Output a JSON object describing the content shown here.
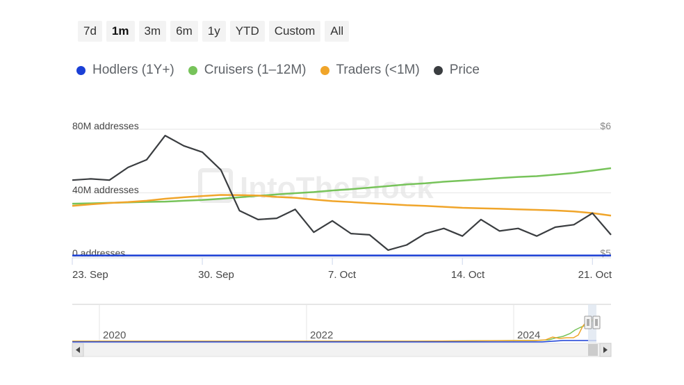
{
  "range_buttons": [
    "7d",
    "1m",
    "3m",
    "6m",
    "1y",
    "YTD",
    "Custom",
    "All"
  ],
  "active_range": "1m",
  "legend": [
    {
      "label": "Hodlers (1Y+)",
      "color": "#1a3fd6"
    },
    {
      "label": "Cruisers (1–12M)",
      "color": "#77c35a"
    },
    {
      "label": "Traders (<1M)",
      "color": "#f0a52a"
    },
    {
      "label": "Price",
      "color": "#3a3d40"
    }
  ],
  "watermark": "IntoTheBlock",
  "chart_data": {
    "type": "line",
    "x": [
      "2024-09-23",
      "2024-09-24",
      "2024-09-25",
      "2024-09-26",
      "2024-09-27",
      "2024-09-28",
      "2024-09-29",
      "2024-09-30",
      "2024-10-01",
      "2024-10-02",
      "2024-10-03",
      "2024-10-04",
      "2024-10-05",
      "2024-10-06",
      "2024-10-07",
      "2024-10-08",
      "2024-10-09",
      "2024-10-10",
      "2024-10-11",
      "2024-10-12",
      "2024-10-13",
      "2024-10-14",
      "2024-10-15",
      "2024-10-16",
      "2024-10-17",
      "2024-10-18",
      "2024-10-19",
      "2024-10-20",
      "2024-10-21",
      "2024-10-22"
    ],
    "x_tick_labels": [
      "23. Sep",
      "30. Sep",
      "7. Oct",
      "14. Oct",
      "21. Oct"
    ],
    "y_left": {
      "tick_labels": [
        "0 addresses",
        "40M addresses",
        "80M addresses"
      ],
      "ylim": [
        0,
        80000000
      ]
    },
    "y_right": {
      "tick_labels": [
        "$5",
        "$6"
      ],
      "ylim": [
        5,
        6
      ]
    },
    "series": [
      {
        "name": "Hodlers (1Y+)",
        "axis": "left",
        "color": "#1a3fd6",
        "values": [
          600000,
          600000,
          600000,
          600000,
          600000,
          600000,
          600000,
          600000,
          600000,
          600000,
          600000,
          600000,
          600000,
          600000,
          600000,
          600000,
          600000,
          600000,
          600000,
          600000,
          600000,
          600000,
          600000,
          600000,
          600000,
          600000,
          600000,
          600000,
          600000,
          600000
        ]
      },
      {
        "name": "Cruisers (1–12M)",
        "axis": "left",
        "color": "#77c35a",
        "values": [
          33200000,
          33400000,
          33700000,
          34000000,
          34300000,
          34500000,
          35000000,
          35500000,
          36300000,
          37200000,
          38100000,
          39000000,
          39800000,
          40500000,
          41500000,
          42300000,
          43300000,
          44300000,
          45300000,
          46000000,
          47000000,
          47700000,
          48500000,
          49300000,
          50000000,
          50500000,
          51500000,
          52500000,
          54000000,
          55500000
        ]
      },
      {
        "name": "Traders (<1M)",
        "axis": "left",
        "color": "#f0a52a",
        "values": [
          31800000,
          32800000,
          33600000,
          34200000,
          35000000,
          36300000,
          37200000,
          38000000,
          38700000,
          38600000,
          38300000,
          37400000,
          36900000,
          35800000,
          34800000,
          34200000,
          33500000,
          32900000,
          32200000,
          31800000,
          31200000,
          30600000,
          30300000,
          30000000,
          29600000,
          29300000,
          28900000,
          28300000,
          27300000,
          25700000
        ]
      },
      {
        "name": "Price",
        "axis": "right",
        "color": "#3a3d40",
        "values": [
          5.6,
          5.61,
          5.6,
          5.7,
          5.76,
          5.95,
          5.87,
          5.82,
          5.68,
          5.36,
          5.29,
          5.3,
          5.37,
          5.19,
          5.28,
          5.18,
          5.17,
          5.05,
          5.09,
          5.18,
          5.22,
          5.16,
          5.29,
          5.2,
          5.22,
          5.16,
          5.23,
          5.25,
          5.34,
          5.17
        ]
      }
    ],
    "navigator": {
      "x_tick_labels": [
        "2020",
        "2022",
        "2024"
      ]
    }
  }
}
